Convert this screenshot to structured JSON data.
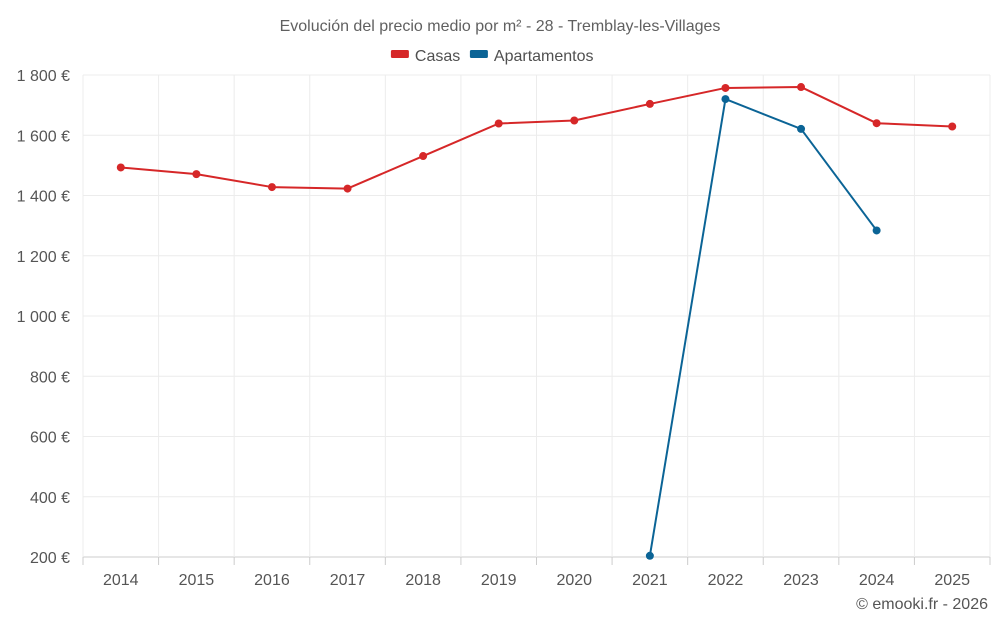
{
  "chart_data": {
    "type": "line",
    "title": "Evolución del precio medio por m² - 28 - Tremblay-les-Villages",
    "categories": [
      "2014",
      "2015",
      "2016",
      "2017",
      "2018",
      "2019",
      "2020",
      "2021",
      "2022",
      "2023",
      "2024",
      "2025"
    ],
    "ylim": [
      200,
      1800
    ],
    "yticks": [
      200,
      400,
      600,
      800,
      1000,
      1200,
      1400,
      1600,
      1800
    ],
    "ytick_labels": [
      "200 €",
      "400 €",
      "600 €",
      "800 €",
      "1 000 €",
      "1 200 €",
      "1 400 €",
      "1 600 €",
      "1 800 €"
    ],
    "grid": true,
    "legend_position": "top-center",
    "series": [
      {
        "name": "Casas",
        "color": "#d62728",
        "values": [
          1493,
          1471,
          1428,
          1423,
          1531,
          1639,
          1649,
          1704,
          1757,
          1760,
          1640,
          1629
        ]
      },
      {
        "name": "Apartamentos",
        "color": "#0b6496",
        "values": [
          null,
          null,
          null,
          null,
          null,
          null,
          null,
          204,
          1720,
          1621,
          1284,
          null
        ]
      }
    ]
  },
  "credit": "© emooki.fr - 2026"
}
